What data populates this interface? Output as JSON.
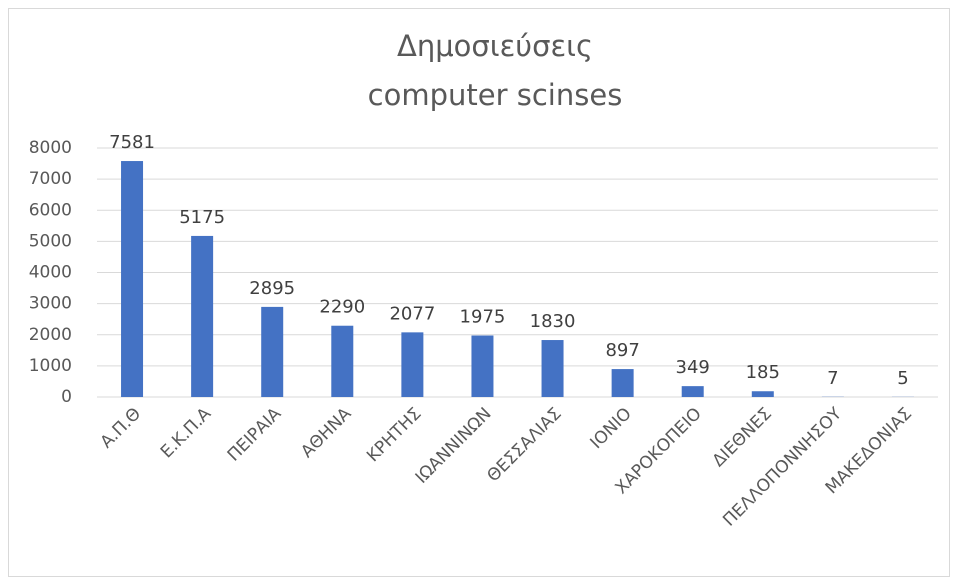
{
  "chart_data": {
    "type": "bar",
    "title": [
      "Δημοσιεύσεις",
      "computer scinses"
    ],
    "categories": [
      "Α.Π.Θ",
      "Ε.Κ.Π.Α",
      "ΠΕΙΡΑΙΑ",
      "ΑΘΗΝΑ",
      "ΚΡΗΤΗΣ",
      "ΙΩΑΝΝΙΝΩΝ",
      "ΘΕΣΣΑΛΙΑΣ",
      "ΙΟΝΙΟ",
      "ΧΑΡΟΚΟΠΕΙΟ",
      "ΔΙΕΘΝΕΣ",
      "ΠΕΛΛΟΠΟΝΝΗΣΟΥ",
      "ΜΑΚΕΔΟΝΙΑΣ"
    ],
    "values": [
      7581,
      5175,
      2895,
      2290,
      2077,
      1975,
      1830,
      897,
      349,
      185,
      7,
      5
    ],
    "color": "#4472c4",
    "ylim": [
      0,
      8000
    ],
    "yticks": [
      0,
      1000,
      2000,
      3000,
      4000,
      5000,
      6000,
      7000,
      8000
    ],
    "grid": true
  }
}
